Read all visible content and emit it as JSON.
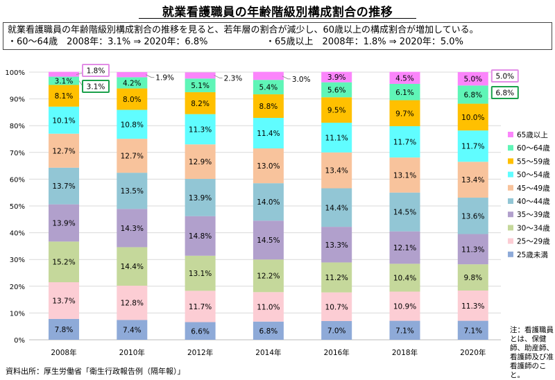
{
  "title": "就業看護職員の年齢階級別構成割合の推移",
  "summary": {
    "line1": "就業看護職員の年齢階級別構成割合の推移を見ると、若年層の割合が減少し、60歳以上の構成割合が増加している。",
    "bullet_a": "・60～64歳　2008年：3.1% ⇒ 2020年：6.8%",
    "bullet_b": "・65歳以上　2008年：1.8% ⇒ 2020年：5.0%"
  },
  "footnote": "注：看護職員とは、保健師、助産師、看護師及び准看護師のこと。",
  "source": "資料出所：厚生労働省「衛生行政報告例（隔年報）」",
  "chart_data": {
    "type": "bar",
    "stacked": true,
    "categories": [
      "2008年",
      "2010年",
      "2012年",
      "2014年",
      "2016年",
      "2018年",
      "2020年"
    ],
    "ylim": [
      0,
      100
    ],
    "yticks": [
      "0%",
      "10%",
      "20%",
      "30%",
      "40%",
      "50%",
      "60%",
      "70%",
      "80%",
      "90%",
      "100%"
    ],
    "legend_position": "right",
    "series": [
      {
        "name": "25歳未満",
        "color": "#8eaad8",
        "values": [
          7.8,
          7.4,
          6.6,
          6.8,
          7.0,
          7.1,
          7.1
        ]
      },
      {
        "name": "25～29歳",
        "color": "#fccdd4",
        "values": [
          13.7,
          12.8,
          11.7,
          11.0,
          10.7,
          10.9,
          11.3
        ]
      },
      {
        "name": "30～34歳",
        "color": "#c5d89b",
        "values": [
          15.2,
          14.4,
          13.1,
          12.2,
          11.2,
          10.4,
          9.8
        ]
      },
      {
        "name": "35～39歳",
        "color": "#b1a0cc",
        "values": [
          13.9,
          14.3,
          14.8,
          14.5,
          13.3,
          12.1,
          11.3
        ]
      },
      {
        "name": "40～44歳",
        "color": "#92c6d5",
        "values": [
          13.7,
          13.5,
          13.9,
          14.0,
          14.4,
          14.5,
          13.6
        ]
      },
      {
        "name": "45～49歳",
        "color": "#f8c39c",
        "values": [
          12.7,
          12.7,
          12.9,
          13.0,
          13.4,
          13.1,
          13.4
        ]
      },
      {
        "name": "50～54歳",
        "color": "#60fdff",
        "values": [
          10.1,
          10.8,
          11.3,
          11.4,
          11.1,
          11.7,
          11.7
        ]
      },
      {
        "name": "55～59歳",
        "color": "#ffc000",
        "values": [
          8.1,
          8.0,
          8.2,
          8.8,
          9.5,
          9.7,
          10.0
        ]
      },
      {
        "name": "60～64歳",
        "color": "#5ff5b7",
        "values": [
          3.1,
          4.2,
          5.1,
          5.4,
          5.6,
          6.1,
          6.8
        ]
      },
      {
        "name": "65歳以上",
        "color": "#fb85fb",
        "values": [
          1.8,
          1.9,
          2.3,
          3.0,
          3.9,
          4.5,
          5.0
        ]
      }
    ],
    "label_suffix": "%",
    "outside_labels": [
      "1.8%",
      "1.9%",
      "2.3%",
      "3.0%"
    ],
    "highlight_colors": {
      "65歳以上": "#e28ce6",
      "60～64歳": "#1aa04a"
    }
  }
}
